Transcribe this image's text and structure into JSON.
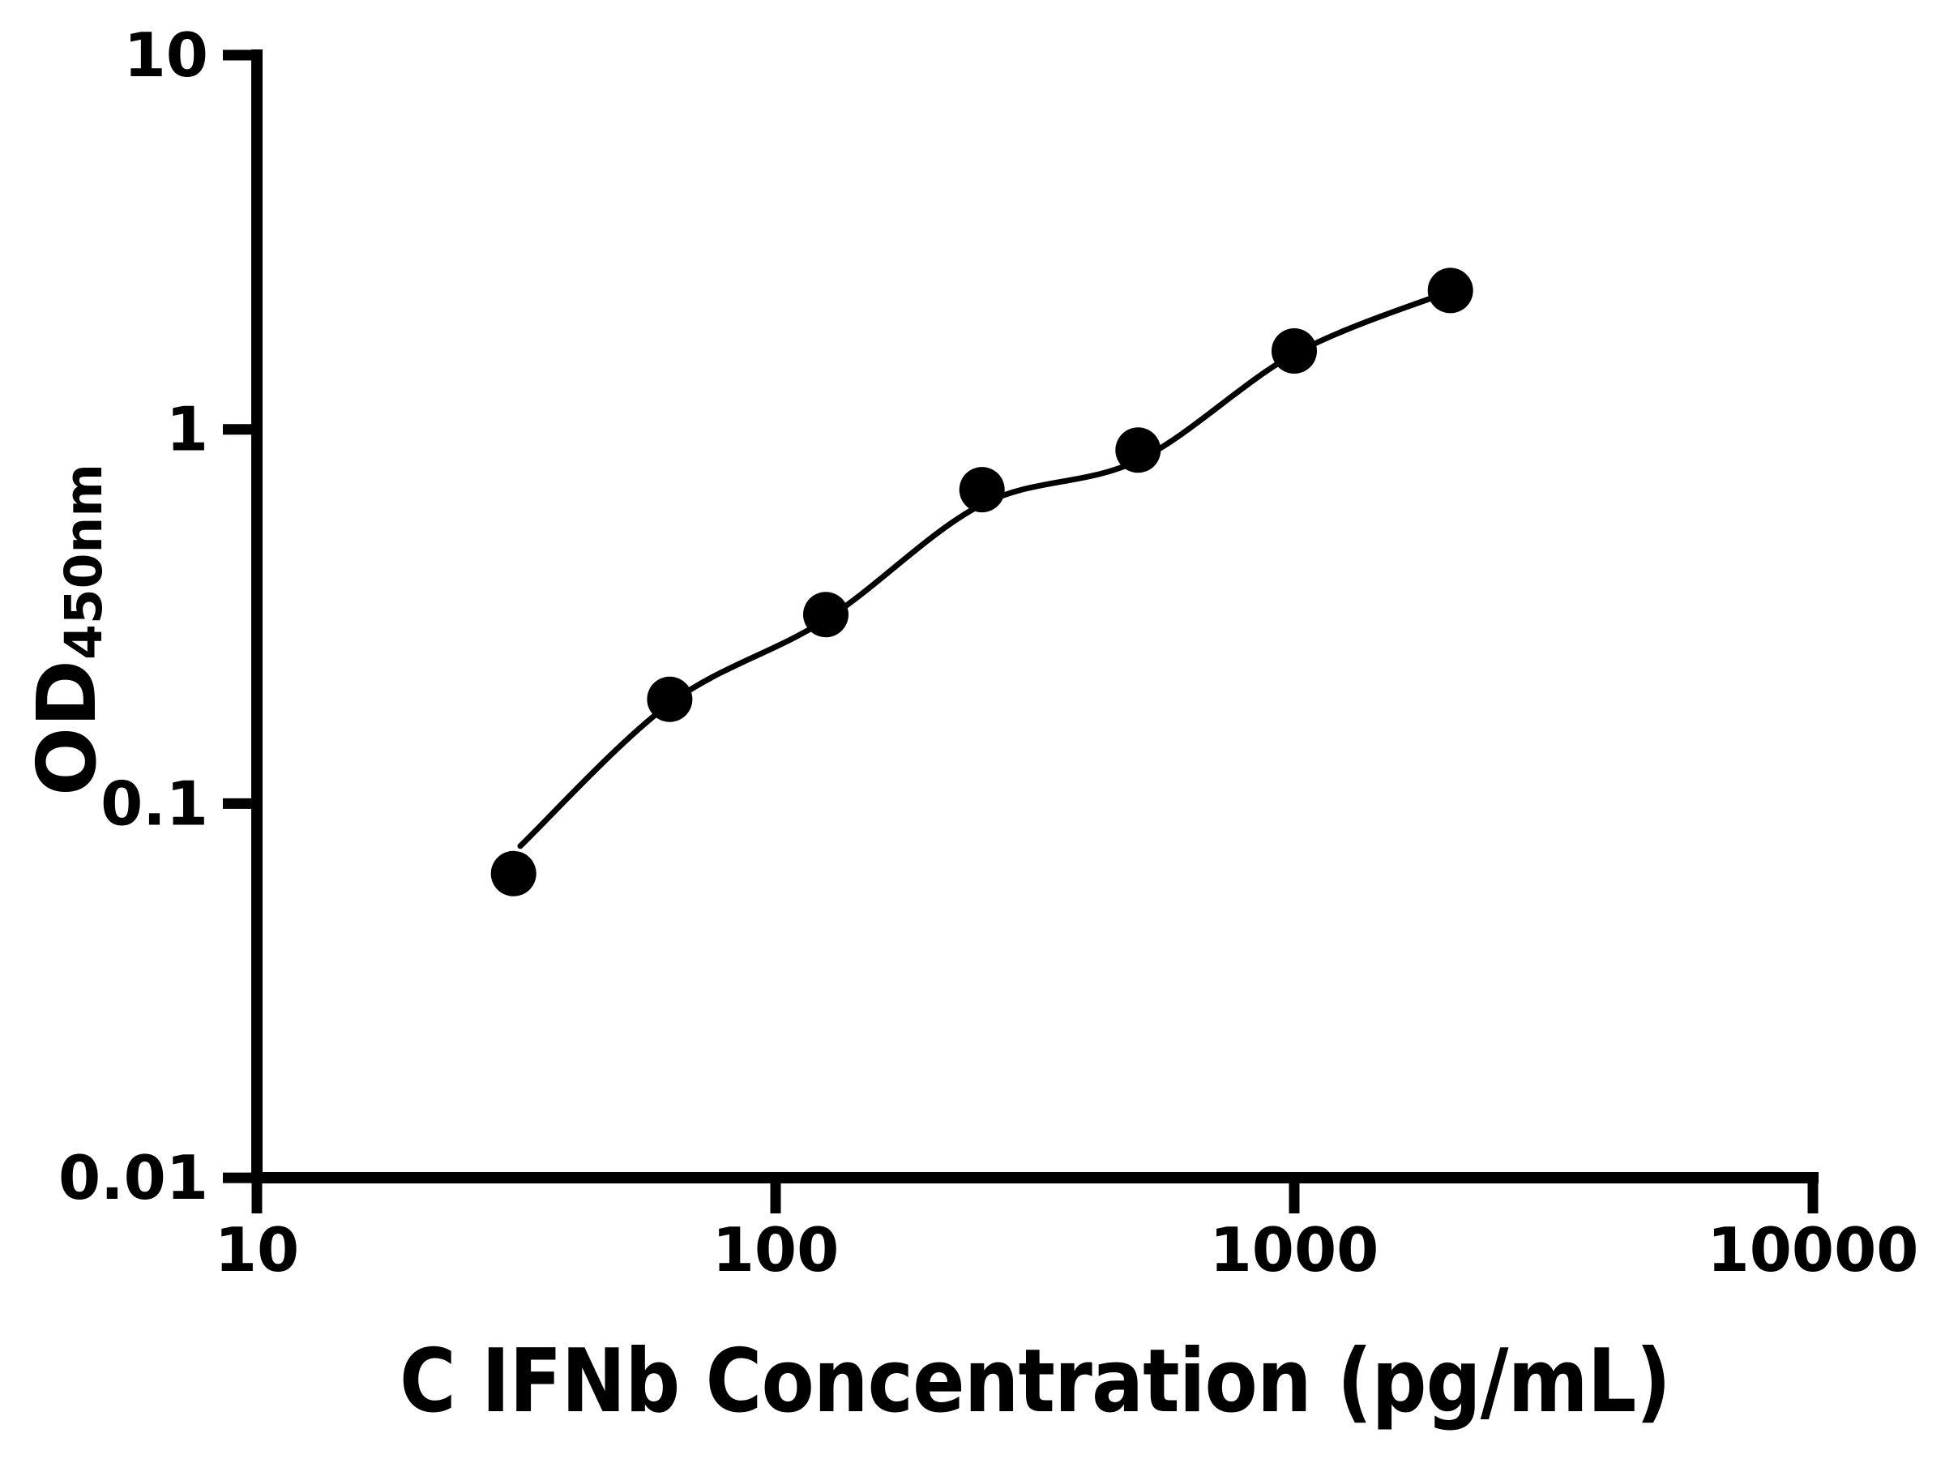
{
  "figure": {
    "background_color": "#ffffff",
    "ink_color": "#000000"
  },
  "chart_data": {
    "type": "scatter",
    "title": "",
    "xlabel": "C IFNb Concentration (pg/mL)",
    "ylabel_main": "OD",
    "ylabel_sub": "450nm",
    "x_scale": "log",
    "y_scale": "log",
    "xlim": [
      10,
      10000
    ],
    "ylim": [
      0.01,
      10
    ],
    "x_ticks": [
      10,
      100,
      1000,
      10000
    ],
    "x_tick_labels": [
      "10",
      "100",
      "1000",
      "10000"
    ],
    "y_ticks": [
      10,
      1,
      0.1,
      0.01
    ],
    "y_tick_labels": [
      "10",
      "1",
      "0.1",
      "0.01"
    ],
    "grid": false,
    "legend": "none",
    "series": [
      {
        "name": "standard-data-points",
        "type": "scatter",
        "marker": "filled-circle",
        "color": "#000000",
        "x": [
          31.25,
          62.5,
          125,
          250,
          500,
          1000,
          2000
        ],
        "y": [
          0.065,
          0.19,
          0.32,
          0.69,
          0.88,
          1.62,
          2.35
        ]
      },
      {
        "name": "fitted-standard-curve",
        "type": "line",
        "color": "#000000",
        "x": [
          32.2,
          62.5,
          125,
          250,
          500,
          1000,
          2000
        ],
        "y": [
          0.077,
          0.185,
          0.31,
          0.63,
          0.826,
          1.59,
          2.34
        ]
      }
    ]
  }
}
